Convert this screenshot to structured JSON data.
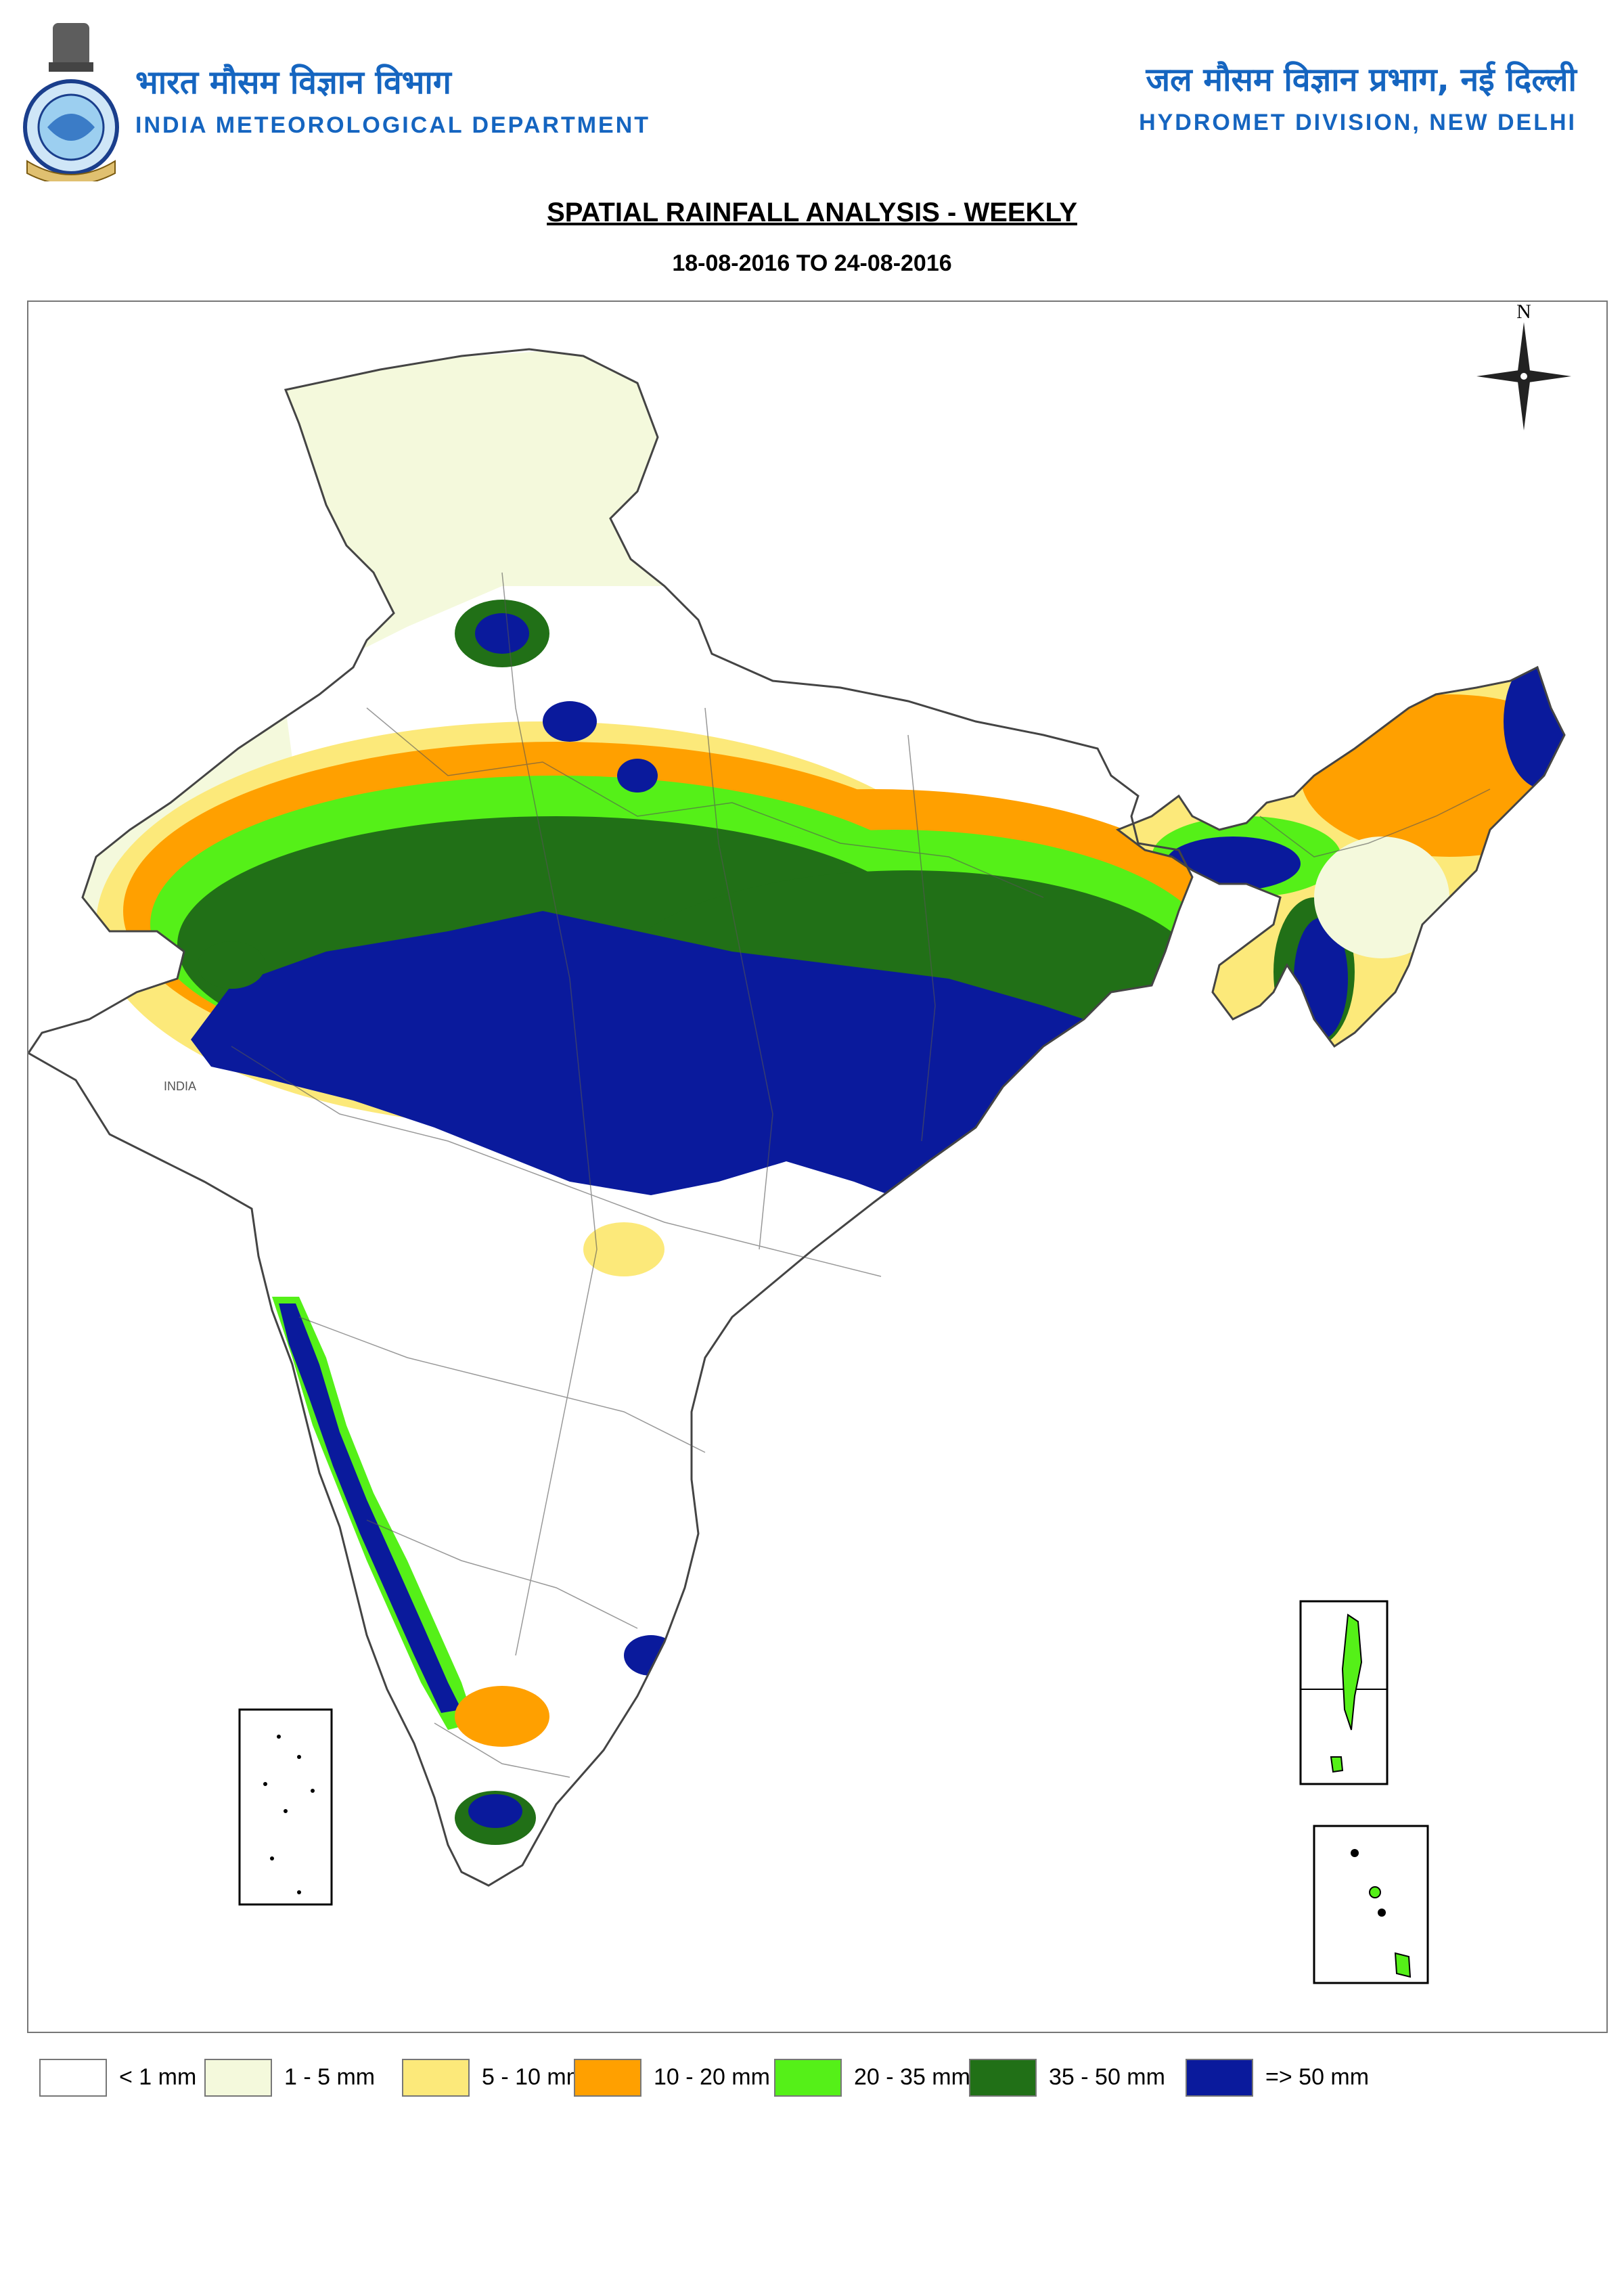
{
  "header": {
    "org_hindi": "भारत मौसम विज्ञान विभाग",
    "org_english": "INDIA METEOROLOGICAL DEPARTMENT",
    "division_hindi": "जल मौसम विज्ञान प्रभाग, नई दिल्ली",
    "division_english": "HYDROMET DIVISION, NEW DELHI"
  },
  "map": {
    "title": "SPATIAL RAINFALL ANALYSIS - WEEKLY",
    "period": "18-08-2016 TO 24-08-2016",
    "north_label": "N",
    "country_label": "INDIA"
  },
  "legend": [
    {
      "label": "< 1 mm",
      "color": "#ffffff"
    },
    {
      "label": "1  - 5 mm",
      "color": "#f4f9dc"
    },
    {
      "label": "5 - 10 mm",
      "color": "#fce97a"
    },
    {
      "label": "10 - 20 mm",
      "color": "#ffa000"
    },
    {
      "label": "20 - 35 mm",
      "color": "#55f018"
    },
    {
      "label": "35 - 50 mm",
      "color": "#217017"
    },
    {
      "label": "=> 50 mm",
      "color": "#0a1a9c"
    }
  ]
}
